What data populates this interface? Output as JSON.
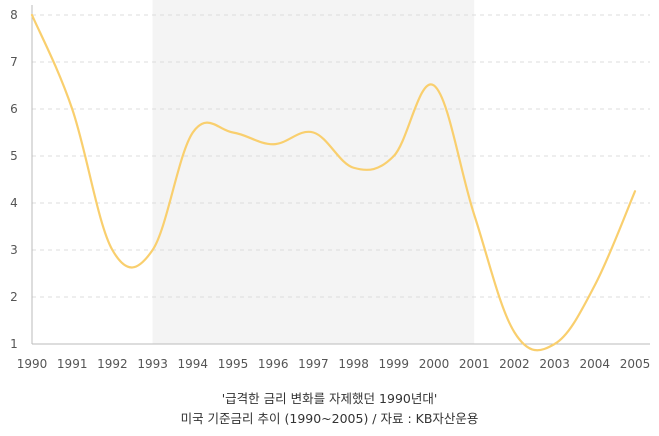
{
  "chart_data": {
    "type": "line",
    "x": [
      "1990",
      "1991",
      "1992",
      "1993",
      "1994",
      "1995",
      "1996",
      "1997",
      "1998",
      "1999",
      "2000",
      "2001",
      "2002",
      "2003",
      "2004",
      "2005"
    ],
    "series": [
      {
        "values": [
          8.0,
          6.0,
          3.0,
          3.0,
          5.5,
          5.5,
          5.25,
          5.5,
          4.75,
          5.0,
          6.5,
          3.75,
          1.25,
          1.0,
          2.25,
          4.25
        ]
      }
    ],
    "ylim": [
      1,
      8
    ],
    "yticks": [
      "1",
      "2",
      "3",
      "4",
      "5",
      "6",
      "7",
      "8"
    ],
    "highlight_range": [
      "1993",
      "2001"
    ],
    "grid": "horizontal dashed",
    "title": "",
    "xlabel": "",
    "ylabel": ""
  },
  "caption": {
    "line1": "'급격한 금리 변화를 자제했던 1990년대'",
    "line2": "미국 기준금리 추이 (1990~2005) / 자료 : KB자산운용"
  },
  "colors": {
    "line": "#f9cf6e",
    "highlight": "#f4f4f4",
    "grid": "#dddddd",
    "axis": "#bbbbbb",
    "tick_text": "#555555"
  }
}
